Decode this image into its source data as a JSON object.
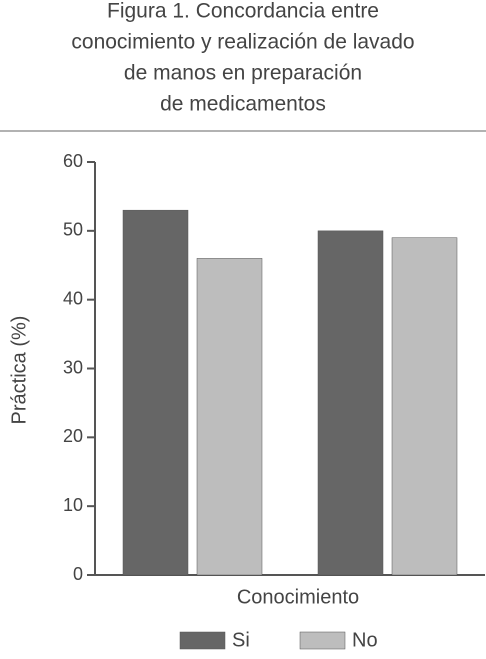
{
  "chart_data": {
    "type": "bar",
    "title": [
      "Figura 1. Concordancia entre",
      "conocimiento y realización de lavado",
      "de manos en preparación",
      "de medicamentos"
    ],
    "xlabel": "Conocimiento",
    "ylabel": "Práctica (%)",
    "categories": [
      null,
      null
    ],
    "series": [
      {
        "name": "Si",
        "color": "#666666",
        "values": [
          53,
          50
        ]
      },
      {
        "name": "No",
        "color": "#bdbdbd",
        "values": [
          46,
          49
        ]
      }
    ],
    "ylim": [
      0,
      60
    ],
    "yticks": [
      0,
      10,
      20,
      30,
      40,
      50,
      60
    ],
    "grid": false,
    "legend": "bottom"
  }
}
